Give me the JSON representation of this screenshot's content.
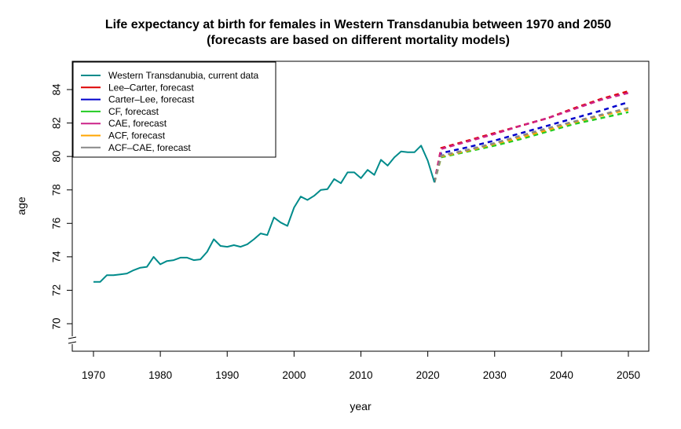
{
  "chart_data": {
    "type": "line",
    "title": "Life expectancy at birth for females in Western Transdanubia between 1970 and 2050",
    "subtitle": "(forecasts are based on different mortality models)",
    "xlabel": "year",
    "ylabel": "age",
    "xlim": [
      1970,
      2050
    ],
    "ylim": [
      68.5,
      85.5
    ],
    "xticks": [
      1970,
      1980,
      1990,
      2000,
      2010,
      2020,
      2030,
      2040,
      2050
    ],
    "yticks": [
      70,
      72,
      74,
      76,
      78,
      80,
      82,
      84
    ],
    "axis_break": true,
    "grid": false,
    "legend_position": "top-left",
    "series": [
      {
        "name": "Western Transdanubia, current data",
        "color": "#008B8B",
        "style": "solid",
        "x": [
          1970,
          1971,
          1972,
          1973,
          1974,
          1975,
          1976,
          1977,
          1978,
          1979,
          1980,
          1981,
          1982,
          1983,
          1984,
          1985,
          1986,
          1987,
          1988,
          1989,
          1990,
          1991,
          1992,
          1993,
          1994,
          1995,
          1996,
          1997,
          1998,
          1999,
          2000,
          2001,
          2002,
          2003,
          2004,
          2005,
          2006,
          2007,
          2008,
          2009,
          2010,
          2011,
          2012,
          2013,
          2014,
          2015,
          2016,
          2017,
          2018,
          2019,
          2020,
          2021
        ],
        "y": [
          72.5,
          72.5,
          72.9,
          72.9,
          72.95,
          73.0,
          73.2,
          73.35,
          73.4,
          74.0,
          73.55,
          73.75,
          73.8,
          73.95,
          73.95,
          73.8,
          73.85,
          74.3,
          75.05,
          74.65,
          74.6,
          74.7,
          74.6,
          74.75,
          75.05,
          75.4,
          75.3,
          76.35,
          76.05,
          75.85,
          76.95,
          77.6,
          77.4,
          77.65,
          78.0,
          78.05,
          78.65,
          78.4,
          79.05,
          79.05,
          78.7,
          79.2,
          78.9,
          79.8,
          79.45,
          79.95,
          80.3,
          80.25,
          80.25,
          80.65,
          79.75,
          78.45
        ]
      },
      {
        "name": "Lee–Carter, forecast",
        "color": "#DD0000",
        "style": "dashed",
        "x": [
          2021,
          2022,
          2026,
          2030,
          2034,
          2038,
          2042,
          2046,
          2050
        ],
        "y": [
          78.45,
          80.5,
          80.95,
          81.4,
          81.85,
          82.3,
          82.9,
          83.45,
          83.9
        ]
      },
      {
        "name": "Carter–Lee, forecast",
        "color": "#0000CC",
        "style": "dashed",
        "x": [
          2021,
          2022,
          2026,
          2030,
          2034,
          2038,
          2042,
          2046,
          2050
        ],
        "y": [
          78.45,
          80.2,
          80.55,
          80.95,
          81.4,
          81.85,
          82.3,
          82.75,
          83.25
        ]
      },
      {
        "name": "CF, forecast",
        "color": "#22CC22",
        "style": "dashed",
        "x": [
          2021,
          2022,
          2026,
          2030,
          2034,
          2038,
          2042,
          2046,
          2050
        ],
        "y": [
          78.45,
          79.95,
          80.3,
          80.65,
          81.05,
          81.5,
          81.95,
          82.3,
          82.65
        ]
      },
      {
        "name": "CAE, forecast",
        "color": "#CC2288",
        "style": "dashed",
        "x": [
          2021,
          2022,
          2026,
          2030,
          2034,
          2038,
          2042,
          2046,
          2050
        ],
        "y": [
          78.45,
          80.45,
          80.9,
          81.35,
          81.85,
          82.3,
          82.85,
          83.4,
          83.8
        ]
      },
      {
        "name": "ACF, forecast",
        "color": "#FFA500",
        "style": "dashed",
        "x": [
          2021,
          2022,
          2026,
          2030,
          2034,
          2038,
          2042,
          2046,
          2050
        ],
        "y": [
          78.45,
          80.0,
          80.35,
          80.75,
          81.15,
          81.6,
          82.05,
          82.45,
          82.8
        ]
      },
      {
        "name": "ACF–CAE, forecast",
        "color": "#888888",
        "style": "dashed",
        "x": [
          2021,
          2022,
          2026,
          2030,
          2034,
          2038,
          2042,
          2046,
          2050
        ],
        "y": [
          78.45,
          80.05,
          80.4,
          80.8,
          81.25,
          81.7,
          82.1,
          82.5,
          82.9
        ]
      }
    ]
  }
}
